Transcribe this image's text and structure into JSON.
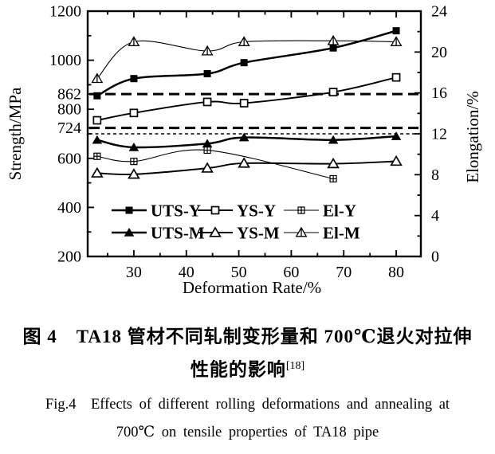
{
  "captions": {
    "zh_line1": "图 4　TA18 管材不同轧制变形量和 700℃退火对拉伸",
    "zh_line2": "性能的影响",
    "zh_ref": "[18]",
    "en_line1": "Fig.4　Effects of different rolling deformations and annealing at",
    "en_line2": "700℃ on tensile properties of TA18 pipe"
  },
  "chart_data": {
    "type": "line",
    "title": "",
    "xlabel": "Deformation Rate/%",
    "ylabel_left": "Strength/MPa",
    "ylabel_right": "Elongation/%",
    "grid": false,
    "legend_position": "inside-bottom",
    "xlim": [
      21.2,
      84.7
    ],
    "x_ticks": [
      30,
      40,
      50,
      60,
      70,
      80
    ],
    "x_minor_ticks": [
      25,
      35,
      45,
      55,
      65,
      75
    ],
    "ylim_left": [
      200,
      1200
    ],
    "y_left_ticks": [
      1200,
      1000,
      862,
      800,
      724,
      600,
      400,
      200
    ],
    "y_left_minor_ticks": [
      1100,
      900,
      700,
      500,
      300
    ],
    "ylim_right": [
      0,
      24
    ],
    "y_right_ticks": [
      24,
      20,
      16,
      12,
      8,
      4,
      0
    ],
    "y_right_minor_ticks": [
      22,
      18,
      14,
      10,
      6,
      2
    ],
    "reference_lines": [
      {
        "axis": "left",
        "value": 862,
        "style": "bold-dashed",
        "meaning": "UTS spec line 862 MPa"
      },
      {
        "axis": "left",
        "value": 724,
        "style": "bold-dashed",
        "meaning": "YS spec line 724 MPa"
      },
      {
        "axis": "right",
        "value": 12,
        "style": "fine-dotted",
        "meaning": "Elongation spec line 12%"
      }
    ],
    "series": [
      {
        "name": "UTS-Y",
        "axis": "left",
        "marker": "filled-square",
        "line_width": 2.5,
        "x": [
          23,
          30,
          44,
          51,
          68,
          80
        ],
        "values": [
          855,
          925,
          945,
          990,
          1050,
          1120
        ]
      },
      {
        "name": "YS-Y",
        "axis": "left",
        "marker": "open-square",
        "line_width": 1.9,
        "x": [
          23,
          30,
          44,
          51,
          68,
          80
        ],
        "values": [
          755,
          785,
          830,
          825,
          870,
          930
        ]
      },
      {
        "name": "El-Y",
        "axis": "right",
        "marker": "crossed-square",
        "line_width": 1.1,
        "x": [
          23,
          30,
          44,
          68
        ],
        "values": [
          9.8,
          9.3,
          10.4,
          7.6
        ]
      },
      {
        "name": "UTS-M",
        "axis": "left",
        "marker": "filled-triangle",
        "line_width": 2.5,
        "x": [
          23,
          30,
          44,
          51,
          68,
          80
        ],
        "values": [
          675,
          645,
          660,
          685,
          675,
          690
        ]
      },
      {
        "name": "YS-M",
        "axis": "left",
        "marker": "open-triangle",
        "line_width": 1.9,
        "x": [
          23,
          30,
          44,
          51,
          68,
          80
        ],
        "values": [
          540,
          535,
          560,
          580,
          578,
          588
        ]
      },
      {
        "name": "El-M",
        "axis": "right",
        "marker": "crossed-triangle",
        "line_width": 1.1,
        "x": [
          23,
          30,
          44,
          51,
          68,
          80
        ],
        "values": [
          17.4,
          21.0,
          20.1,
          21.0,
          21.1,
          21.0
        ]
      }
    ],
    "legend": {
      "rows": [
        [
          "UTS-Y",
          "YS-Y",
          "El-Y"
        ],
        [
          "UTS-M",
          "YS-M",
          "El-M"
        ]
      ]
    }
  }
}
